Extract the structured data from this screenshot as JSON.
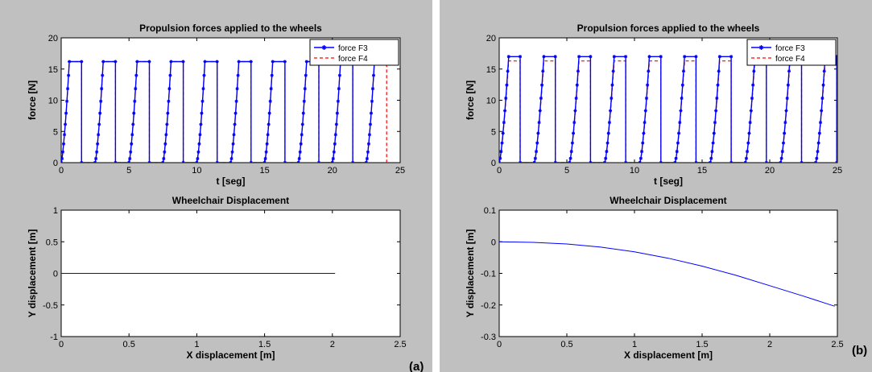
{
  "panels": [
    {
      "label": "(a)",
      "charts": [
        {
          "type": "line",
          "title": "Propulsion forces applied to the wheels",
          "xlabel": "t [seg]",
          "ylabel": "force [N]",
          "xlim": [
            0,
            25
          ],
          "ylim": [
            0,
            20
          ],
          "xticks": [
            0,
            5,
            10,
            15,
            20,
            25
          ],
          "yticks": [
            0,
            5,
            10,
            15,
            20
          ],
          "grid": false,
          "legend_position": "top-right",
          "pulse": {
            "starts": [
              0,
              2.5,
              5,
              7.5,
              10,
              12.5,
              15,
              17.5,
              20,
              22.5,
              25
            ],
            "rise": 0.6,
            "high": 0.9
          },
          "series": [
            {
              "name": "force F3",
              "color": "#0000ff",
              "style": "solid-star",
              "high_value": 16.2,
              "x_end": 23.8
            },
            {
              "name": "force F4",
              "color": "#ff0000",
              "style": "dashed",
              "high_value": 16.2,
              "x_end": 24.0
            }
          ]
        },
        {
          "type": "line",
          "title": "Wheelchair Displacement",
          "xlabel": "X displacement [m]",
          "ylabel": "Y displacement [m]",
          "xlim": [
            0,
            2.5
          ],
          "ylim": [
            -1,
            1
          ],
          "xticks": [
            0,
            0.5,
            1,
            1.5,
            2,
            2.5
          ],
          "yticks": [
            -1,
            -0.5,
            0,
            0.5,
            1
          ],
          "grid": false,
          "series": [
            {
              "color": "#0000ff",
              "x": [
                0,
                2.02
              ],
              "y": [
                0,
                0
              ]
            }
          ]
        }
      ]
    },
    {
      "label": "(b)",
      "charts": [
        {
          "type": "line",
          "title": "Propulsion forces applied to the wheels",
          "xlabel": "t [seg]",
          "ylabel": "force [N]",
          "xlim": [
            0,
            25
          ],
          "ylim": [
            0,
            20
          ],
          "xticks": [
            0,
            5,
            10,
            15,
            20,
            25
          ],
          "yticks": [
            0,
            5,
            10,
            15,
            20
          ],
          "grid": false,
          "legend_position": "top-right",
          "pulse": {
            "starts": [
              0,
              2.6,
              5.2,
              7.8,
              10.4,
              13.0,
              15.6,
              18.2,
              20.8,
              23.4
            ],
            "rise": 0.7,
            "high": 0.85
          },
          "series": [
            {
              "name": "force F3",
              "color": "#0000ff",
              "style": "solid-star",
              "high_value": 17.0,
              "x_end": 25
            },
            {
              "name": "force F4",
              "color": "#ff0000",
              "style": "dashed",
              "high_value": 16.3,
              "x_end": 25
            }
          ]
        },
        {
          "type": "line",
          "title": "Wheelchair Displacement",
          "xlabel": "X displacement [m]",
          "ylabel": "Y displacement [m]",
          "xlim": [
            0,
            2.5
          ],
          "ylim": [
            -0.3,
            0.1
          ],
          "xticks": [
            0,
            0.5,
            1,
            1.5,
            2,
            2.5
          ],
          "yticks": [
            -0.3,
            -0.2,
            -0.1,
            0,
            0.1
          ],
          "grid": false,
          "series": [
            {
              "color": "#0000ff",
              "x": [
                0,
                0.25,
                0.5,
                0.75,
                1.0,
                1.25,
                1.5,
                1.75,
                2.0,
                2.25,
                2.48
              ],
              "y": [
                0,
                -0.002,
                -0.007,
                -0.017,
                -0.032,
                -0.052,
                -0.077,
                -0.106,
                -0.139,
                -0.172,
                -0.204
              ]
            }
          ]
        }
      ]
    }
  ]
}
